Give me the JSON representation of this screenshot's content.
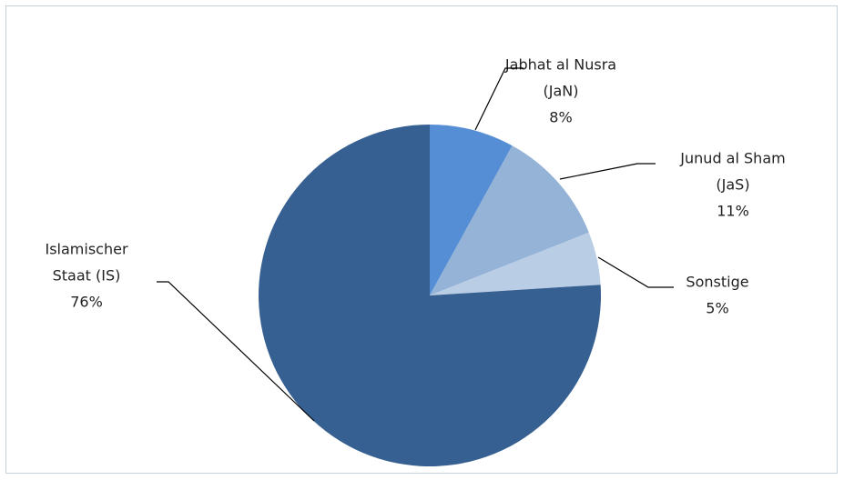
{
  "chart_data": {
    "type": "pie",
    "categories": [
      [
        "Jabhat al Nusra",
        "(JaN)"
      ],
      [
        "Junud al Sham",
        "(JaS)"
      ],
      [
        "Sonstige"
      ],
      [
        "Islamischer",
        "Staat (IS)"
      ]
    ],
    "values": [
      8,
      11,
      5,
      76
    ],
    "value_labels": [
      "8%",
      "11%",
      "5%",
      "76%"
    ],
    "colors": [
      "#558ed5",
      "#95b3d7",
      "#b9cde5",
      "#376092"
    ]
  }
}
